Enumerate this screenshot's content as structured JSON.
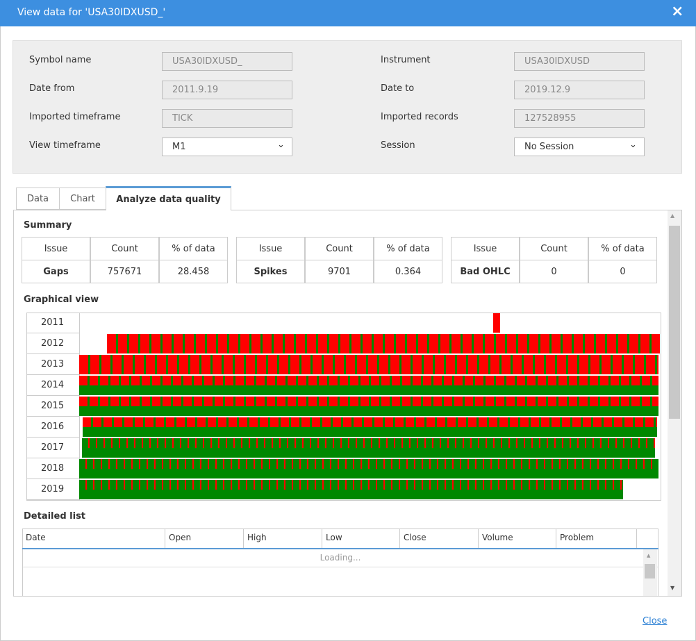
{
  "dialog": {
    "title": "View data for 'USA30IDXUSD_'",
    "close_link": "Close"
  },
  "fields": [
    {
      "label": "Symbol name",
      "value": "USA30IDXUSD_"
    },
    {
      "label": "Instrument",
      "value": "USA30IDXUSD"
    },
    {
      "label": "Date from",
      "value": "2011.9.19"
    },
    {
      "label": "Date to",
      "value": "2019.12.9"
    },
    {
      "label": "Imported timeframe",
      "value": "TICK"
    },
    {
      "label": "Imported records",
      "value": "127528955"
    },
    {
      "label": "View timeframe",
      "value": "M1"
    },
    {
      "label": "Session",
      "value": "No Session"
    }
  ],
  "tabs": [
    "Data",
    "Chart",
    "Analyze data quality"
  ],
  "summary": {
    "title": "Summary",
    "tables": [
      {
        "header": [
          "Issue",
          "Count",
          "% of data"
        ],
        "row": [
          "Gaps",
          757671,
          28.458
        ]
      },
      {
        "header": [
          "Issue",
          "Count",
          "% of data"
        ],
        "row": [
          "Spikes",
          9701,
          0.364
        ]
      },
      {
        "header": [
          "Issue",
          "Count",
          "% of data"
        ],
        "row": [
          "Bad OHLC",
          0,
          0
        ]
      }
    ]
  },
  "graphical_view": {
    "title": "Graphical view",
    "years": [
      "2011",
      "2012",
      "2013",
      "2014",
      "2015",
      "2016",
      "2017",
      "2018",
      "2019"
    ]
  },
  "detailed_list": {
    "title": "Detailed list",
    "columns": [
      "Date",
      "Open",
      "High",
      "Low",
      "Close",
      "Volume",
      "Problem"
    ],
    "status": "Loading..."
  }
}
